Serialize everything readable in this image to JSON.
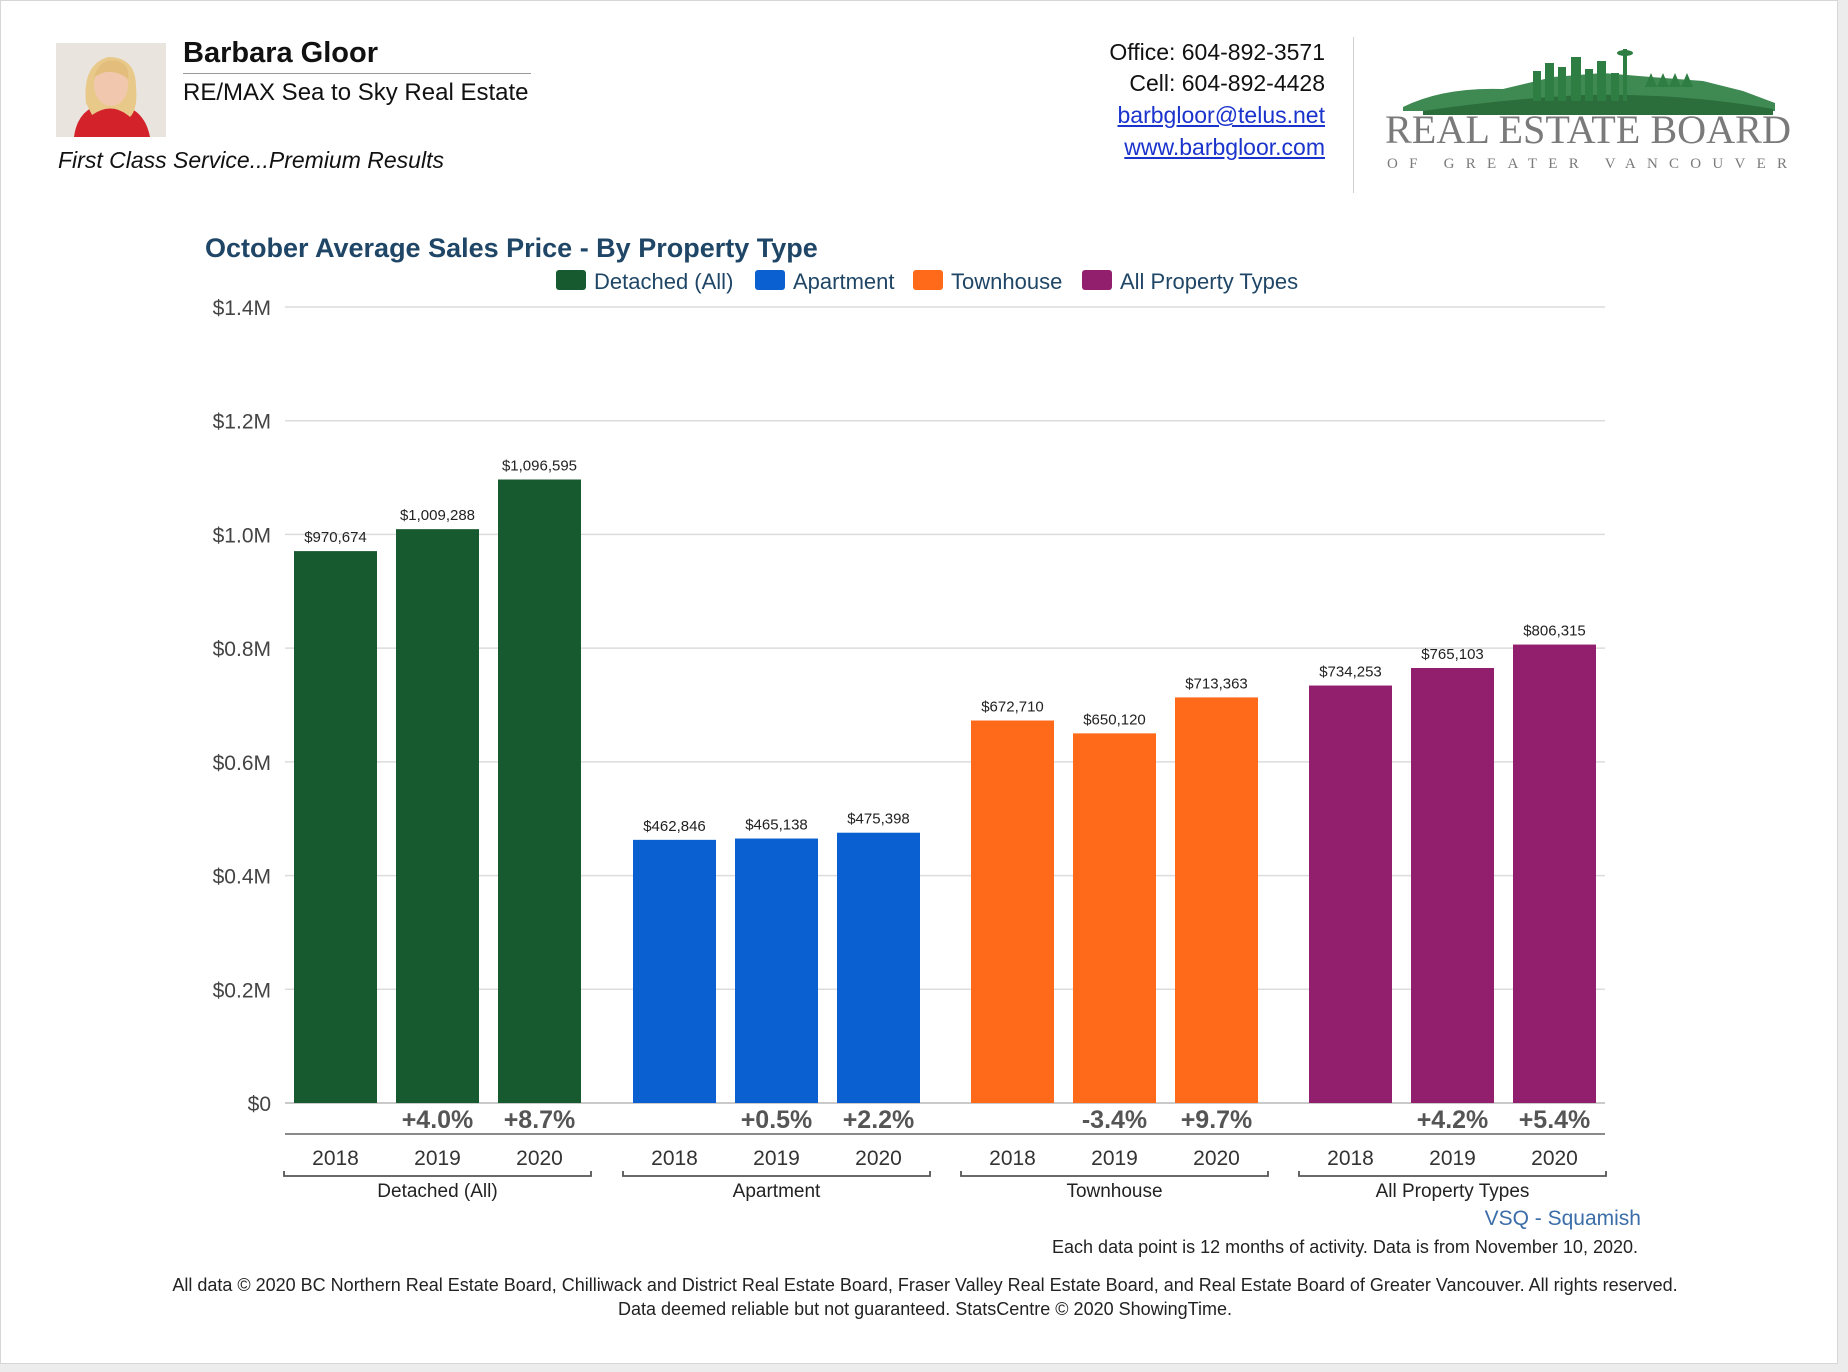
{
  "agent": {
    "name": "Barbara Gloor",
    "company": "RE/MAX Sea to Sky Real Estate",
    "tagline": "First Class Service...Premium Results"
  },
  "contact": {
    "office": "Office: 604-892-3571",
    "cell": "Cell: 604-892-4428",
    "email": "barbgloor@telus.net",
    "website": "www.barbgloor.com"
  },
  "board_logo": {
    "line1": "REAL ESTATE BOARD",
    "line2": "OF GREATER VANCOUVER"
  },
  "chart_data": {
    "type": "bar",
    "title": "October Average Sales Price - By Property Type",
    "xlabel": "",
    "ylabel": "",
    "ylim": [
      0,
      1400000
    ],
    "yticks": [
      {
        "value": 0,
        "label": "$0"
      },
      {
        "value": 200000,
        "label": "$0.2M"
      },
      {
        "value": 400000,
        "label": "$0.4M"
      },
      {
        "value": 600000,
        "label": "$0.6M"
      },
      {
        "value": 800000,
        "label": "$0.8M"
      },
      {
        "value": 1000000,
        "label": "$1.0M"
      },
      {
        "value": 1200000,
        "label": "$1.2M"
      },
      {
        "value": 1400000,
        "label": "$1.4M"
      }
    ],
    "grid": true,
    "legend_position": "top",
    "categories": [
      "2018",
      "2019",
      "2020"
    ],
    "groups": [
      {
        "name": "Detached (All)",
        "color": "#185a30",
        "years": [
          "2018",
          "2019",
          "2020"
        ],
        "values": [
          970674,
          1009288,
          1096595
        ],
        "value_labels": [
          "$970,674",
          "$1,009,288",
          "$1,096,595"
        ],
        "changes": [
          "",
          "+4.0%",
          "+8.7%"
        ]
      },
      {
        "name": "Apartment",
        "color": "#0a60d0",
        "years": [
          "2018",
          "2019",
          "2020"
        ],
        "values": [
          462846,
          465138,
          475398
        ],
        "value_labels": [
          "$462,846",
          "$465,138",
          "$475,398"
        ],
        "changes": [
          "",
          "+0.5%",
          "+2.2%"
        ]
      },
      {
        "name": "Townhouse",
        "color": "#ff6a1a",
        "years": [
          "2018",
          "2019",
          "2020"
        ],
        "values": [
          672710,
          650120,
          713363
        ],
        "value_labels": [
          "$672,710",
          "$650,120",
          "$713,363"
        ],
        "changes": [
          "",
          "-3.4%",
          "+9.7%"
        ]
      },
      {
        "name": "All Property Types",
        "color": "#921f6d",
        "years": [
          "2018",
          "2019",
          "2020"
        ],
        "values": [
          734253,
          765103,
          806315
        ],
        "value_labels": [
          "$734,253",
          "$765,103",
          "$806,315"
        ],
        "changes": [
          "",
          "+4.2%",
          "+5.4%"
        ]
      }
    ]
  },
  "region_label": "VSQ - Squamish",
  "data_note": "Each data point is 12 months of activity. Data is from November 10, 2020.",
  "copyright_line1": "All data © 2020 BC Northern Real Estate Board, Chilliwack and District Real Estate Board, Fraser Valley Real Estate Board, and Real Estate Board of Greater Vancouver. All rights reserved.",
  "copyright_line2": "Data deemed reliable but not guaranteed. StatsCentre © 2020 ShowingTime."
}
